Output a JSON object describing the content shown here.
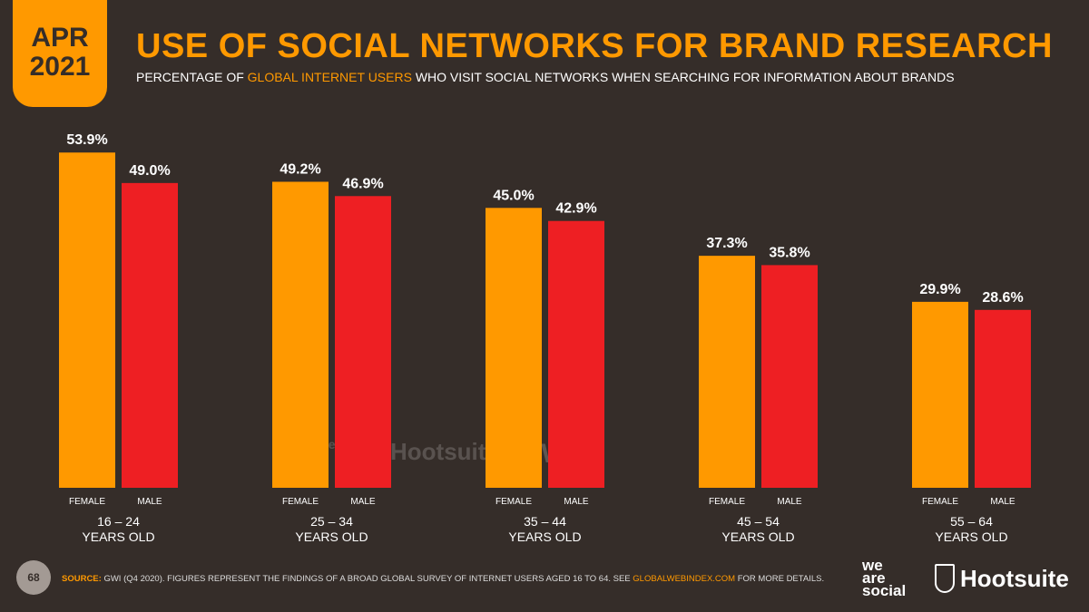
{
  "badge": {
    "month": "APR",
    "year": "2021"
  },
  "title": "USE OF SOCIAL NETWORKS FOR BRAND RESEARCH",
  "subtitle": {
    "pre": "PERCENTAGE OF ",
    "highlight": "GLOBAL INTERNET USERS",
    "post": " WHO VISIT SOCIAL NETWORKS WHEN SEARCHING FOR INFORMATION ABOUT BRANDS"
  },
  "colors": {
    "background": "#352d29",
    "female": "#ff9900",
    "male": "#ee1f23",
    "accent": "#ff9900"
  },
  "chart_data": {
    "type": "bar",
    "categories": [
      "16 – 24",
      "25 – 34",
      "35 – 44",
      "45 – 54",
      "55 – 64"
    ],
    "category_suffix": "YEARS OLD",
    "series": [
      {
        "name": "FEMALE",
        "values": [
          53.9,
          49.2,
          45.0,
          37.3,
          29.9
        ],
        "labels": [
          "53.9%",
          "49.2%",
          "45.0%",
          "37.3%",
          "29.9%"
        ]
      },
      {
        "name": "MALE",
        "values": [
          49.0,
          46.9,
          42.9,
          35.8,
          28.6
        ],
        "labels": [
          "49.0%",
          "46.9%",
          "42.9%",
          "35.8%",
          "28.6%"
        ]
      }
    ],
    "ylim": [
      0,
      54
    ],
    "grid": false
  },
  "watermark": {
    "was": "we are social",
    "hootsuite": "Hootsuite",
    "gwi": "GWI."
  },
  "footer": {
    "page_number": "68",
    "source_label": "SOURCE:",
    "source_text": " GWI (Q4 2020). FIGURES REPRESENT THE FINDINGS OF A BROAD GLOBAL SURVEY OF INTERNET USERS AGED 16 TO 64. SEE ",
    "source_link": "GLOBALWEBINDEX.COM",
    "source_end": " FOR MORE DETAILS.",
    "logo_was": [
      "we",
      "are",
      "social"
    ],
    "logo_hootsuite": "Hootsuite"
  }
}
